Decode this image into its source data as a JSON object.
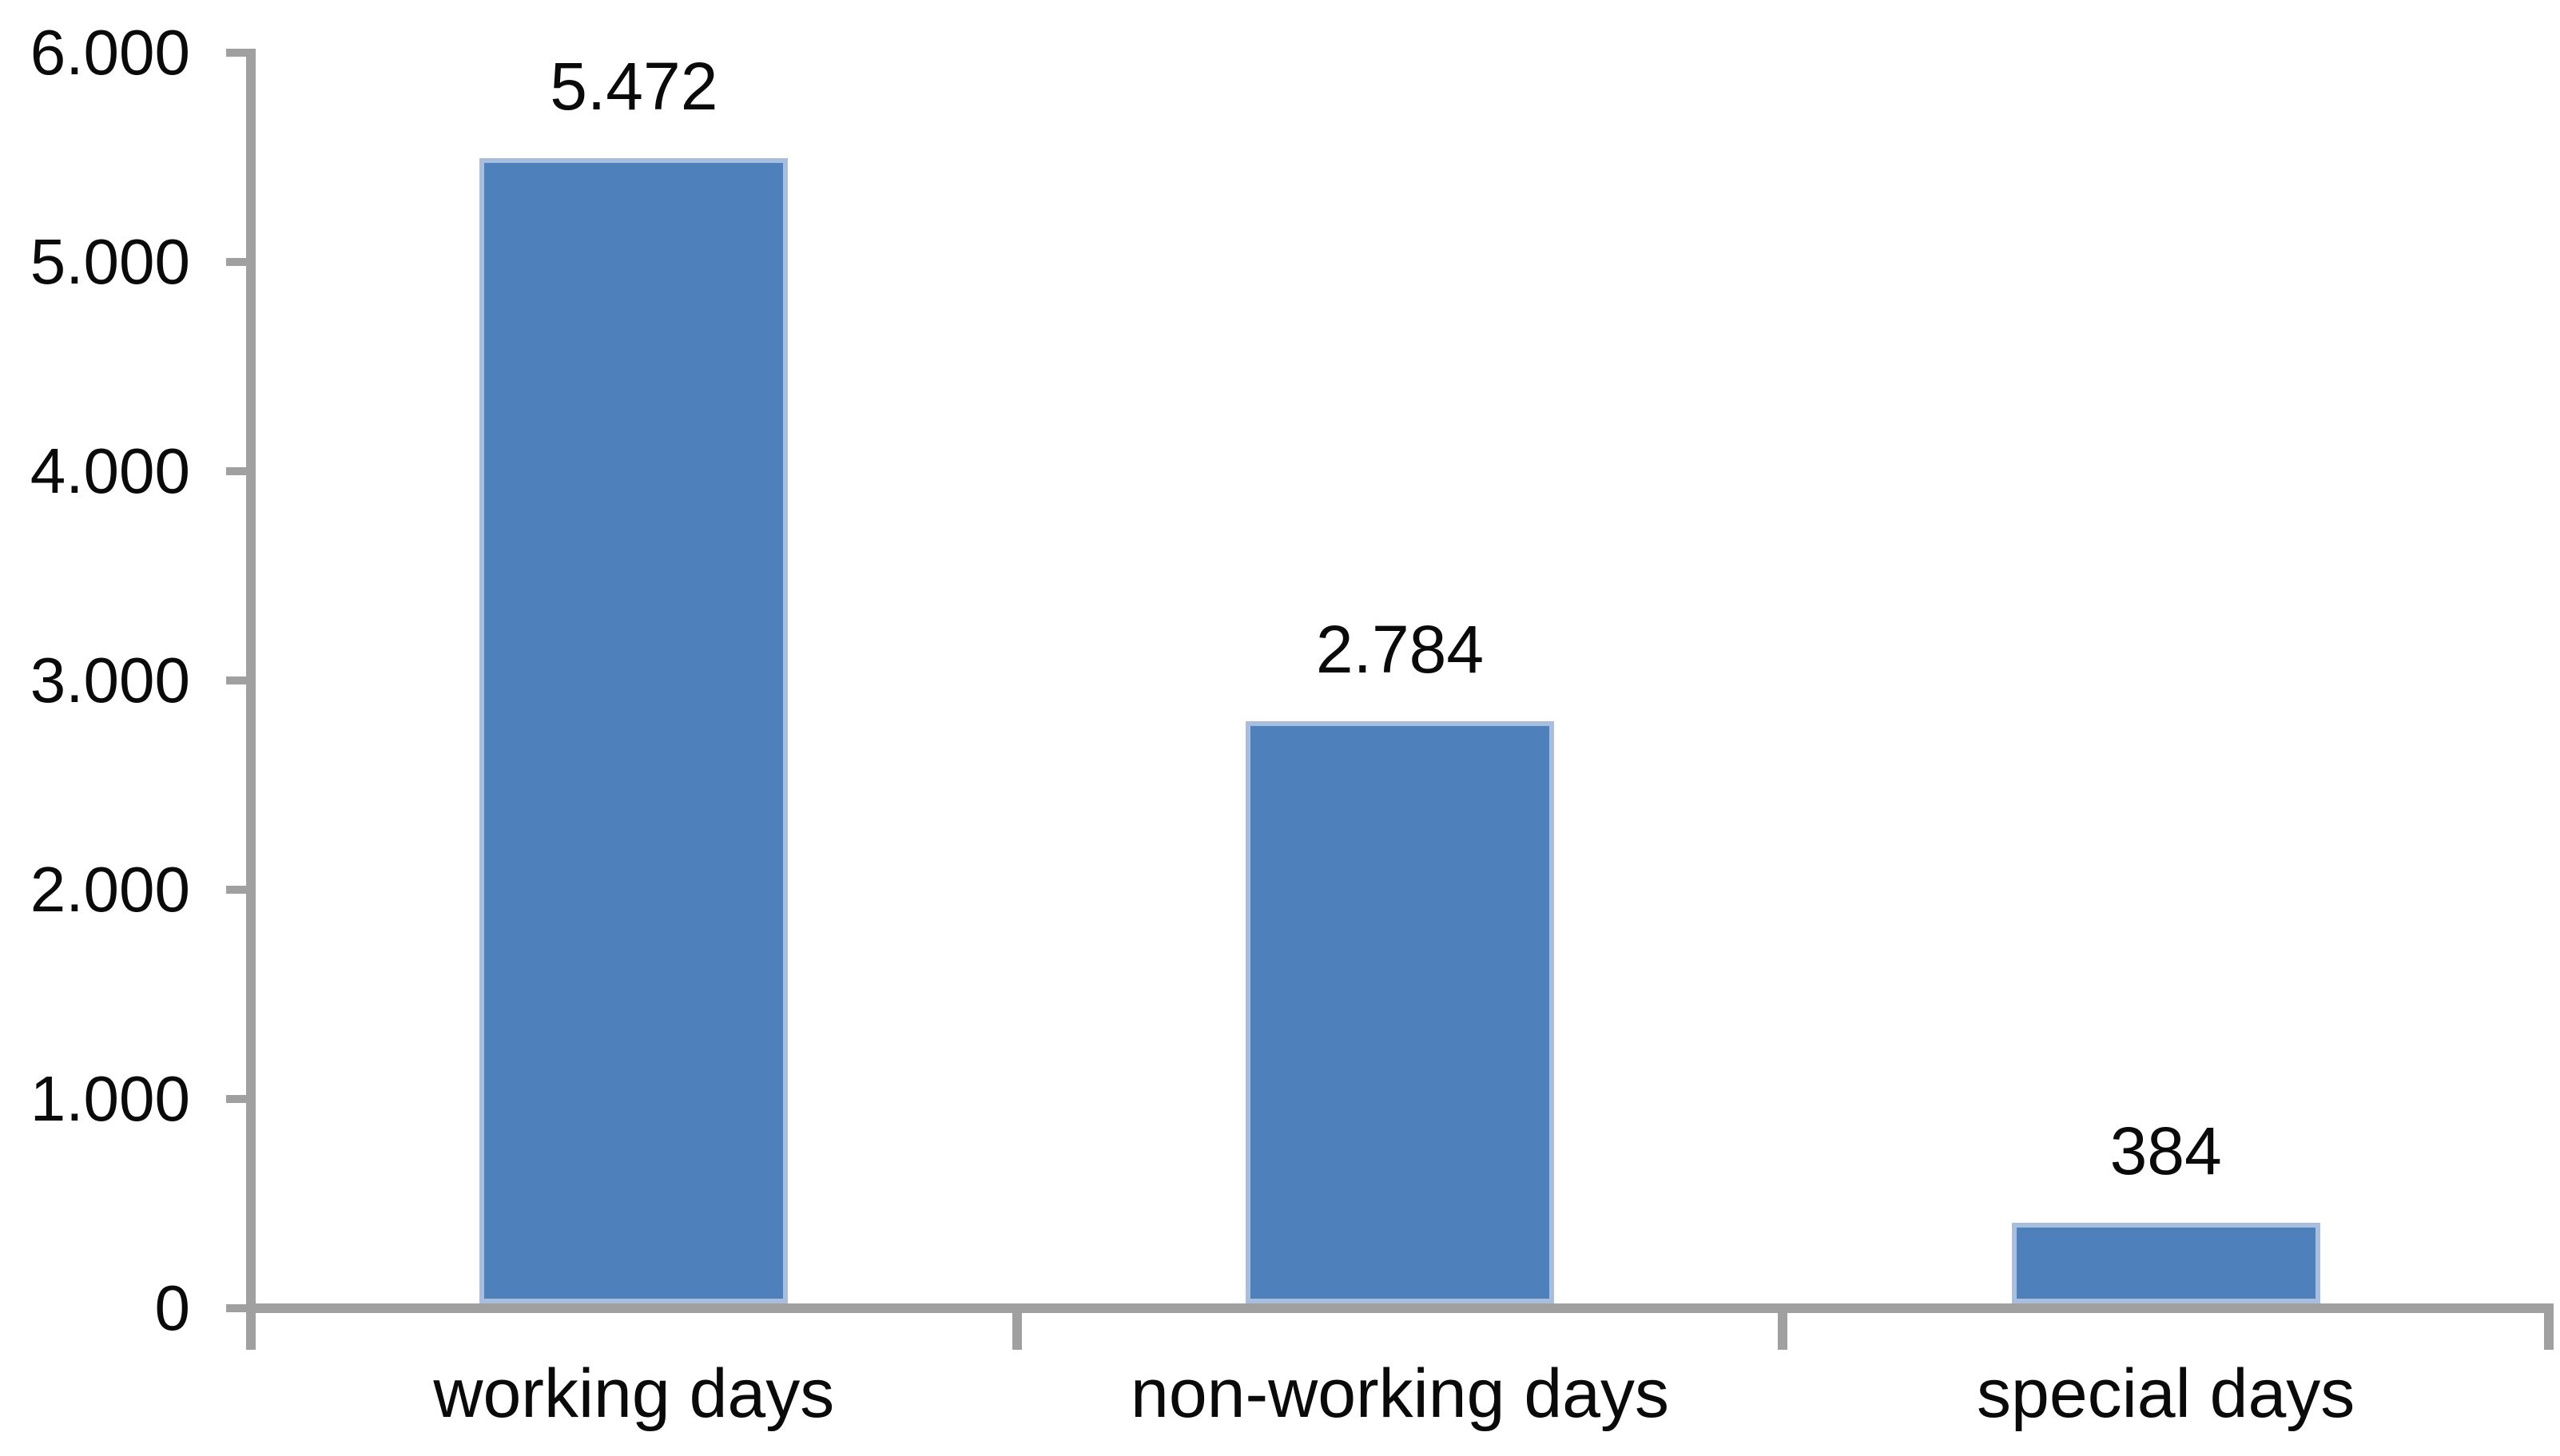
{
  "chart_data": {
    "type": "bar",
    "title": "",
    "xlabel": "",
    "ylabel": "",
    "categories": [
      "working days",
      "non-working days",
      "special days"
    ],
    "values": [
      5472,
      2784,
      384
    ],
    "value_labels": [
      "5.472",
      "2.784",
      "384"
    ],
    "ylim": [
      0,
      6000
    ],
    "ytick_values": [
      0,
      1000,
      2000,
      3000,
      4000,
      5000,
      6000
    ],
    "ytick_labels": [
      "0",
      "1.000",
      "2.000",
      "3.000",
      "4.000",
      "5.000",
      "6.000"
    ],
    "grid": false,
    "legend": false,
    "colors": {
      "bar_fill": "#4e80bc",
      "bar_border": "#a9bedd",
      "axis": "#a0a0a0",
      "text": "#0a0a0a",
      "background": "#ffffff"
    }
  }
}
